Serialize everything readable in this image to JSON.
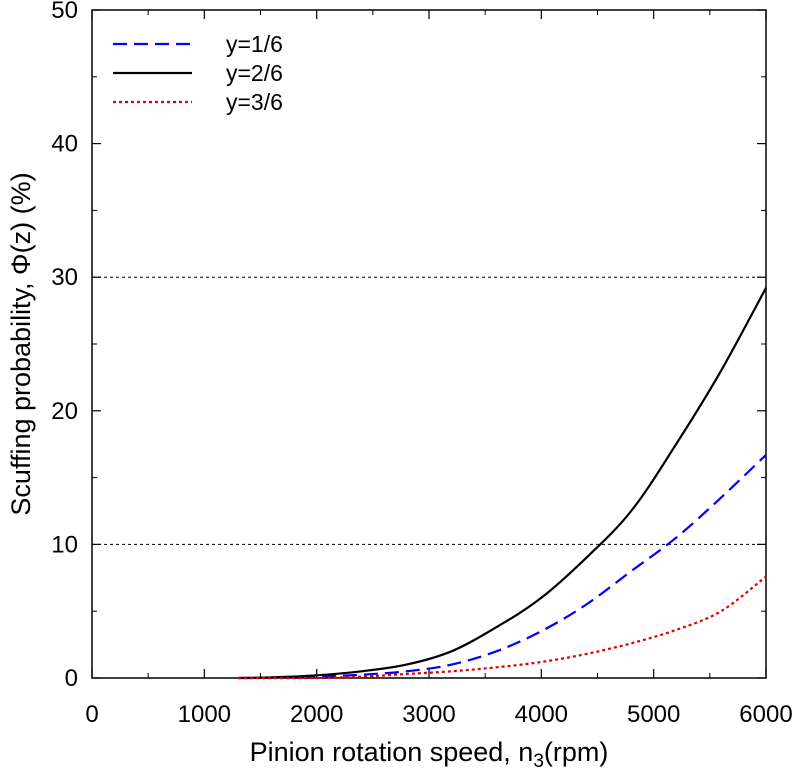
{
  "chart_data": {
    "type": "line",
    "title": "",
    "xlabel": "Pinion rotation speed, n",
    "xlabel_sub": "3",
    "xlabel_unit": "(rpm)",
    "ylabel": "Scuffing probability, Φ(z) (%)",
    "xlim": [
      0,
      6000
    ],
    "ylim": [
      0,
      50
    ],
    "xticks": [
      0,
      1000,
      2000,
      3000,
      4000,
      5000,
      6000
    ],
    "yticks": [
      0,
      10,
      20,
      30,
      40,
      50
    ],
    "grid": false,
    "reference_lines": [
      10,
      30
    ],
    "legend_position": "top-left",
    "series": [
      {
        "name": "y=1/6",
        "color": "#0000ff",
        "style": "dashed",
        "x": [
          1300,
          1600,
          2000,
          2400,
          2800,
          3200,
          3600,
          4000,
          4400,
          4800,
          5200,
          5600,
          6000
        ],
        "y": [
          0.0,
          0.02,
          0.1,
          0.25,
          0.5,
          1.0,
          2.0,
          3.5,
          5.5,
          8.0,
          10.5,
          13.5,
          16.7
        ]
      },
      {
        "name": "y=2/6",
        "color": "#000000",
        "style": "solid",
        "x": [
          1300,
          1600,
          2000,
          2400,
          2800,
          3200,
          3600,
          4000,
          4400,
          4800,
          5200,
          5600,
          6000
        ],
        "y": [
          0.0,
          0.05,
          0.2,
          0.5,
          1.0,
          2.0,
          3.8,
          6.0,
          9.0,
          12.5,
          17.5,
          23.0,
          29.2
        ]
      },
      {
        "name": "y=3/6",
        "color": "#e00000",
        "style": "dotted",
        "x": [
          1300,
          1600,
          2000,
          2400,
          2800,
          3200,
          3600,
          4000,
          4400,
          4800,
          5200,
          5600,
          6000
        ],
        "y": [
          0.0,
          0.0,
          0.0,
          0.1,
          0.3,
          0.5,
          0.8,
          1.2,
          1.8,
          2.6,
          3.6,
          5.0,
          7.6
        ]
      }
    ]
  }
}
